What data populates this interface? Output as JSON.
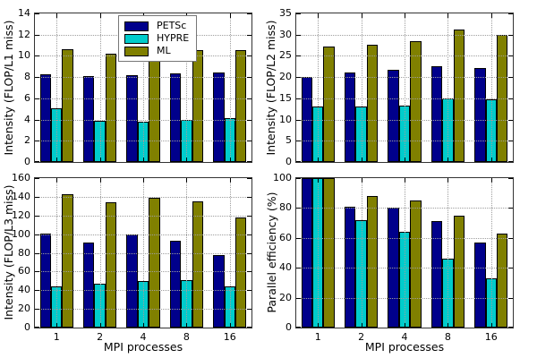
{
  "figure": {
    "background": "#ffffff",
    "axis_color": "#000000",
    "grid_color": "#9e9e9e",
    "series_colors": {
      "PETSc": "#00008B",
      "HYPRE": "#00CCCC",
      "ML": "#808000"
    },
    "legend_entries": [
      "PETSc",
      "HYPRE",
      "ML"
    ]
  },
  "chart_data": [
    {
      "type": "bar",
      "title": "",
      "ylabel": "Intensity (FLOP/L1 miss)",
      "xlabel": "",
      "categories": [
        "1",
        "2",
        "4",
        "8",
        "16"
      ],
      "ylim": [
        0,
        14
      ],
      "yticks": [
        0,
        2,
        4,
        6,
        8,
        10,
        12,
        14
      ],
      "grid": true,
      "show_xticklabels": false,
      "show_legend": true,
      "legend_position": "upper center",
      "series": [
        {
          "name": "PETSc",
          "values": [
            8.3,
            8.1,
            8.15,
            8.35,
            8.4
          ]
        },
        {
          "name": "HYPRE",
          "values": [
            5.05,
            3.9,
            3.8,
            4.0,
            4.1
          ]
        },
        {
          "name": "ML",
          "values": [
            10.6,
            10.2,
            10.0,
            10.5,
            10.5
          ]
        }
      ]
    },
    {
      "type": "bar",
      "title": "",
      "ylabel": "Intensity (FLOP/L2 miss)",
      "xlabel": "",
      "categories": [
        "1",
        "2",
        "4",
        "8",
        "16"
      ],
      "ylim": [
        0,
        35
      ],
      "yticks": [
        0,
        5,
        10,
        15,
        20,
        25,
        30,
        35
      ],
      "grid": true,
      "show_xticklabels": false,
      "show_legend": false,
      "legend_position": "none",
      "series": [
        {
          "name": "PETSc",
          "values": [
            20.0,
            21.0,
            21.7,
            22.6,
            22.1
          ]
        },
        {
          "name": "HYPRE",
          "values": [
            13.0,
            13.0,
            13.3,
            15.0,
            14.8
          ]
        },
        {
          "name": "ML",
          "values": [
            27.1,
            27.6,
            28.4,
            31.1,
            30.0
          ]
        }
      ]
    },
    {
      "type": "bar",
      "title": "",
      "ylabel": "Intensity (FLOP/L3 miss)",
      "xlabel": "MPI processes",
      "categories": [
        "1",
        "2",
        "4",
        "8",
        "16"
      ],
      "ylim": [
        0,
        160
      ],
      "yticks": [
        0,
        20,
        40,
        60,
        80,
        100,
        120,
        140,
        160
      ],
      "grid": true,
      "show_xticklabels": true,
      "show_legend": false,
      "legend_position": "none",
      "series": [
        {
          "name": "PETSc",
          "values": [
            101,
            91,
            100,
            93,
            78
          ]
        },
        {
          "name": "HYPRE",
          "values": [
            44,
            47,
            50,
            51,
            44
          ]
        },
        {
          "name": "ML",
          "values": [
            143,
            134,
            139,
            135,
            118
          ]
        }
      ]
    },
    {
      "type": "bar",
      "title": "",
      "ylabel": "Parallel efficiency (%)",
      "xlabel": "MPI processes",
      "categories": [
        "1",
        "2",
        "4",
        "8",
        "16"
      ],
      "ylim": [
        0,
        100
      ],
      "yticks": [
        0,
        20,
        40,
        60,
        80,
        100
      ],
      "grid": true,
      "show_xticklabels": true,
      "show_legend": false,
      "legend_position": "none",
      "series": [
        {
          "name": "PETSc",
          "values": [
            100,
            81,
            80,
            71,
            57
          ]
        },
        {
          "name": "HYPRE",
          "values": [
            100,
            72,
            64,
            46,
            33
          ]
        },
        {
          "name": "ML",
          "values": [
            100,
            88,
            85,
            75,
            63
          ]
        }
      ]
    }
  ]
}
